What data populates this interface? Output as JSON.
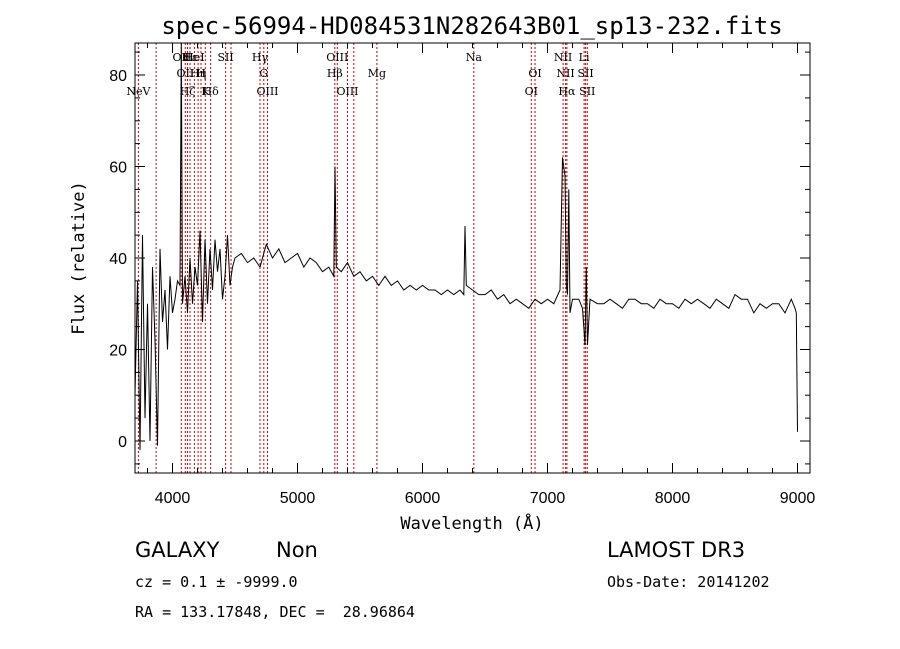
{
  "chart_data": {
    "type": "line",
    "title": "spec-56994-HD084531N282643B01_sp13-232.fits",
    "xlabel": "Wavelength (Å)",
    "ylabel": "Flux (relative)",
    "xlim": [
      3700,
      9100
    ],
    "ylim": [
      -7,
      87
    ],
    "xticks": [
      4000,
      5000,
      6000,
      7000,
      8000,
      9000
    ],
    "yticks": [
      0,
      20,
      40,
      60,
      80
    ],
    "line_color": "#000000",
    "marker_color": "#cc0000",
    "grid": false,
    "x": [
      3700,
      3720,
      3740,
      3760,
      3780,
      3800,
      3820,
      3840,
      3860,
      3880,
      3900,
      3920,
      3940,
      3960,
      3980,
      4000,
      4020,
      4040,
      4060,
      4070,
      4080,
      4100,
      4120,
      4140,
      4160,
      4180,
      4200,
      4220,
      4240,
      4260,
      4280,
      4300,
      4320,
      4340,
      4360,
      4380,
      4400,
      4420,
      4440,
      4460,
      4480,
      4500,
      4550,
      4600,
      4650,
      4700,
      4750,
      4800,
      4850,
      4900,
      4950,
      5000,
      5050,
      5100,
      5150,
      5200,
      5250,
      5290,
      5300,
      5310,
      5350,
      5400,
      5450,
      5500,
      5550,
      5600,
      5650,
      5700,
      5750,
      5800,
      5850,
      5900,
      5950,
      6000,
      6050,
      6100,
      6150,
      6200,
      6250,
      6300,
      6330,
      6340,
      6350,
      6400,
      6450,
      6500,
      6550,
      6600,
      6650,
      6700,
      6750,
      6800,
      6850,
      6900,
      6950,
      7000,
      7050,
      7100,
      7120,
      7140,
      7150,
      7160,
      7170,
      7180,
      7200,
      7250,
      7280,
      7300,
      7310,
      7320,
      7340,
      7400,
      7450,
      7500,
      7550,
      7600,
      7650,
      7700,
      7750,
      7800,
      7850,
      7900,
      7950,
      8000,
      8050,
      8100,
      8150,
      8200,
      8250,
      8300,
      8350,
      8400,
      8450,
      8500,
      8550,
      8600,
      8650,
      8700,
      8750,
      8800,
      8850,
      8900,
      8950,
      8980,
      8990,
      9000
    ],
    "y": [
      10,
      35,
      -2,
      45,
      5,
      30,
      0,
      38,
      22,
      -1,
      42,
      26,
      33,
      20,
      36,
      28,
      31,
      35,
      34,
      88,
      30,
      36,
      28,
      40,
      30,
      38,
      34,
      46,
      26,
      44,
      30,
      42,
      33,
      44,
      37,
      42,
      31,
      36,
      45,
      34,
      38,
      40,
      41,
      39,
      40,
      38,
      43,
      40,
      42,
      39,
      40,
      41,
      38,
      40,
      39,
      37,
      38,
      36,
      60,
      38,
      37,
      39,
      36,
      37,
      35,
      36,
      34,
      36,
      34,
      35,
      33,
      34,
      33,
      34,
      33,
      33,
      32,
      33,
      32,
      33,
      32,
      47,
      34,
      33,
      32,
      32,
      33,
      31,
      32,
      30,
      31,
      30,
      29,
      31,
      30,
      31,
      30,
      33,
      62,
      58,
      34,
      32,
      55,
      28,
      31,
      31,
      29,
      21,
      38,
      21,
      31,
      30,
      30,
      31,
      30,
      29,
      31,
      31,
      30,
      30,
      29,
      31,
      30,
      30,
      29,
      31,
      30,
      31,
      30,
      29,
      31,
      30,
      29,
      32,
      31,
      31,
      28,
      30,
      29,
      30,
      30,
      28,
      31,
      29,
      28,
      2
    ],
    "lines": [
      {
        "wl": 3727,
        "label": "NeV",
        "row": 3
      },
      {
        "wl": 3869,
        "label": "",
        "row": 0
      },
      {
        "wl": 4070,
        "label": "OII",
        "row": 1
      },
      {
        "wl": 4102,
        "label": "OII",
        "row": 2
      },
      {
        "wl": 4120,
        "label": "Hζ",
        "row": 3
      },
      {
        "wl": 4140,
        "label": "Hε",
        "row": 1
      },
      {
        "wl": 4175,
        "label": "HeI",
        "row": 1
      },
      {
        "wl": 4205,
        "label": "Hη",
        "row": 2
      },
      {
        "wl": 4228,
        "label": "H",
        "row": 2
      },
      {
        "wl": 4262,
        "label": "K",
        "row": 3
      },
      {
        "wl": 4305,
        "label": "Hδ",
        "row": 3
      },
      {
        "wl": 4425,
        "label": "SII",
        "row": 1
      },
      {
        "wl": 4468,
        "label": "",
        "row": 0
      },
      {
        "wl": 4700,
        "label": "Hγ",
        "row": 1
      },
      {
        "wl": 4730,
        "label": "G",
        "row": 2
      },
      {
        "wl": 4760,
        "label": "OIII",
        "row": 3
      },
      {
        "wl": 5298,
        "label": "Hβ",
        "row": 2
      },
      {
        "wl": 5318,
        "label": "OIII",
        "row": 1
      },
      {
        "wl": 5400,
        "label": "OIII",
        "row": 3
      },
      {
        "wl": 5450,
        "label": "",
        "row": 0
      },
      {
        "wl": 5635,
        "label": "Mg",
        "row": 2
      },
      {
        "wl": 6410,
        "label": "Na",
        "row": 1
      },
      {
        "wl": 6900,
        "label": "OI",
        "row": 2
      },
      {
        "wl": 6870,
        "label": "OI",
        "row": 3
      },
      {
        "wl": 7125,
        "label": "NII",
        "row": 1
      },
      {
        "wl": 7145,
        "label": "NII",
        "row": 2
      },
      {
        "wl": 7155,
        "label": "Hα",
        "row": 3
      },
      {
        "wl": 7293,
        "label": "Li",
        "row": 1
      },
      {
        "wl": 7305,
        "label": "SII",
        "row": 2
      },
      {
        "wl": 7318,
        "label": "SII",
        "row": 3
      }
    ]
  },
  "info": {
    "object_class": "GALAXY",
    "subclass": "Non",
    "survey": "LAMOST DR3",
    "cz": "cz = 0.1 ± -9999.0",
    "obs_date": "Obs-Date: 20141202",
    "coords": "RA = 133.17848, DEC =  28.96864"
  }
}
